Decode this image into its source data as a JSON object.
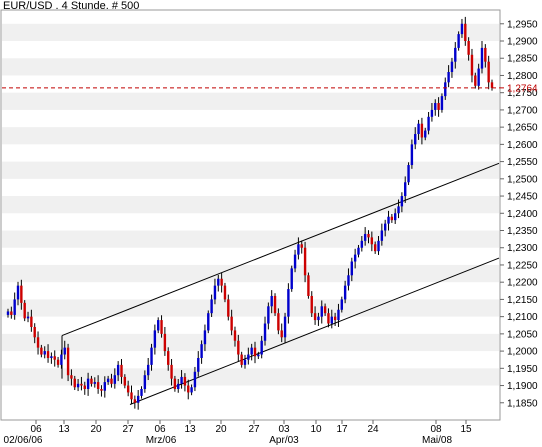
{
  "chart_data": {
    "type": "candlestick",
    "title": "EUR/USD . 4 Stunde. # 500",
    "xlabel": "",
    "ylabel": "",
    "ylim": [
      1.18,
      1.299
    ],
    "y_ticks": [
      "1,2950",
      "1,2900",
      "1,2850",
      "1,2800",
      "1,2750",
      "1,2700",
      "1,2650",
      "1,2600",
      "1,2550",
      "1,2500",
      "1,2450",
      "1,2400",
      "1,2350",
      "1,2300",
      "1,2250",
      "1,2200",
      "1,2150",
      "1,2100",
      "1,2050",
      "1,2000",
      "1,1950",
      "1,1900",
      "1,1850"
    ],
    "x_ticks_upper": [
      "06",
      "13",
      "20",
      "27",
      "06",
      "13",
      "20",
      "27",
      "03",
      "10",
      "17",
      "24",
      "08",
      "15"
    ],
    "x_ticks_lower": [
      "02/06/06",
      "Mrz/06",
      "Apr/03",
      "Mai/08"
    ],
    "current_price": 1.2764,
    "current_price_label": "1,2764",
    "grid": "alternating horizontal bands",
    "colors": {
      "up": "#0000cc",
      "down": "#cc0000",
      "wick": "#000000",
      "price_line": "#c00000",
      "band": "#f0f0f0",
      "channel": "#000000"
    },
    "trend_channel": {
      "upper": [
        [
          1.2045,
          1.2545
        ]
      ],
      "lower": [
        [
          1.1845,
          1.227
        ]
      ]
    },
    "closes": [
      1.2115,
      1.2105,
      1.215,
      1.219,
      1.214,
      1.2095,
      1.21,
      1.207,
      1.204,
      1.201,
      1.199,
      1.2,
      1.198,
      1.1985,
      1.1975,
      1.196,
      1.199,
      1.201,
      1.193,
      1.192,
      1.1895,
      1.1905,
      1.19,
      1.189,
      1.192,
      1.1905,
      1.191,
      1.189,
      1.1885,
      1.191,
      1.192,
      1.1905,
      1.193,
      1.196,
      1.1925,
      1.19,
      1.188,
      1.186,
      1.185,
      1.187,
      1.189,
      1.193,
      1.196,
      1.201,
      1.206,
      1.209,
      1.205,
      1.2,
      1.196,
      1.192,
      1.189,
      1.1905,
      1.1925,
      1.19,
      1.188,
      1.1895,
      1.194,
      1.198,
      1.202,
      1.206,
      1.211,
      1.215,
      1.219,
      1.221,
      1.219,
      1.215,
      1.21,
      1.206,
      1.203,
      1.199,
      1.196,
      1.1975,
      1.199,
      1.201,
      1.1985,
      1.199,
      1.203,
      1.208,
      1.213,
      1.216,
      1.211,
      1.206,
      1.204,
      1.21,
      1.218,
      1.224,
      1.228,
      1.231,
      1.23,
      1.222,
      1.216,
      1.211,
      1.209,
      1.21,
      1.213,
      1.211,
      1.208,
      1.21,
      1.209,
      1.212,
      1.215,
      1.219,
      1.222,
      1.226,
      1.228,
      1.23,
      1.232,
      1.234,
      1.233,
      1.231,
      1.229,
      1.232,
      1.235,
      1.237,
      1.239,
      1.238,
      1.24,
      1.242,
      1.245,
      1.249,
      1.254,
      1.26,
      1.263,
      1.266,
      1.262,
      1.264,
      1.268,
      1.27,
      1.272,
      1.27,
      1.274,
      1.278,
      1.281,
      1.284,
      1.288,
      1.292,
      1.295,
      1.29,
      1.286,
      1.28,
      1.277,
      1.282,
      1.288,
      1.284,
      1.278,
      1.2764
    ]
  }
}
